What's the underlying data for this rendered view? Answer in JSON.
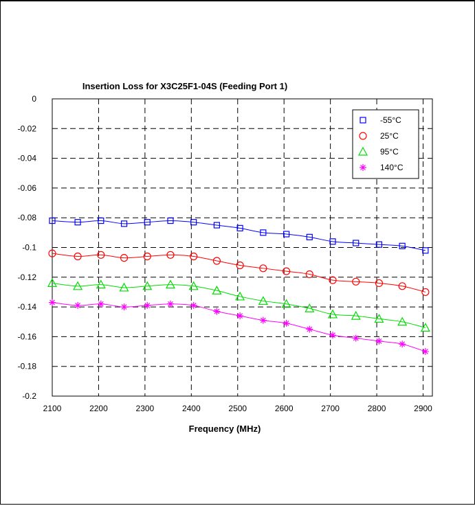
{
  "chart_data": {
    "type": "line",
    "title": "Insertion Loss for X3C25F1-04S (Feeding Port 1)",
    "xlabel": "Frequency (MHz)",
    "ylabel": "",
    "xlim": [
      2100,
      2920
    ],
    "ylim": [
      -0.2,
      0
    ],
    "xticks": [
      2100,
      2200,
      2300,
      2400,
      2500,
      2600,
      2700,
      2800,
      2900
    ],
    "yticks": [
      0,
      -0.02,
      -0.04,
      -0.06,
      -0.08,
      -0.1,
      -0.12,
      -0.14,
      -0.16,
      -0.18,
      -0.2
    ],
    "xtick_labels": [
      "2100",
      "2200",
      "2300",
      "2400",
      "2500",
      "2600",
      "2700",
      "2800",
      "2900"
    ],
    "ytick_labels": [
      "0",
      "-0.02",
      "-0.04",
      "-0.06",
      "-0.08",
      "-0.1",
      "-0.12",
      "-0.14",
      "-0.16",
      "-0.18",
      "-0.2"
    ],
    "grid": true,
    "legend_position": "top-right",
    "x": [
      2100,
      2155,
      2205,
      2255,
      2305,
      2355,
      2405,
      2455,
      2505,
      2555,
      2605,
      2655,
      2705,
      2755,
      2805,
      2855,
      2905
    ],
    "series": [
      {
        "name": "-55°C",
        "marker": "square",
        "color": "#0000ff",
        "values": [
          -0.082,
          -0.083,
          -0.082,
          -0.084,
          -0.083,
          -0.082,
          -0.083,
          -0.085,
          -0.087,
          -0.09,
          -0.091,
          -0.093,
          -0.096,
          -0.097,
          -0.098,
          -0.099,
          -0.102
        ]
      },
      {
        "name": "25°C",
        "marker": "circle",
        "color": "#ff0000",
        "values": [
          -0.104,
          -0.106,
          -0.105,
          -0.107,
          -0.106,
          -0.105,
          -0.106,
          -0.109,
          -0.112,
          -0.114,
          -0.116,
          -0.118,
          -0.122,
          -0.123,
          -0.124,
          -0.126,
          -0.13
        ]
      },
      {
        "name": "95°C",
        "marker": "triangle",
        "color": "#00dd00",
        "values": [
          -0.124,
          -0.126,
          -0.125,
          -0.127,
          -0.126,
          -0.125,
          -0.126,
          -0.129,
          -0.133,
          -0.136,
          -0.138,
          -0.141,
          -0.145,
          -0.146,
          -0.148,
          -0.15,
          -0.154
        ]
      },
      {
        "name": "140°C",
        "marker": "asterisk",
        "color": "#ff00ff",
        "values": [
          -0.137,
          -0.139,
          -0.138,
          -0.14,
          -0.139,
          -0.138,
          -0.139,
          -0.143,
          -0.146,
          -0.149,
          -0.151,
          -0.155,
          -0.159,
          -0.161,
          -0.163,
          -0.165,
          -0.17
        ]
      }
    ]
  }
}
